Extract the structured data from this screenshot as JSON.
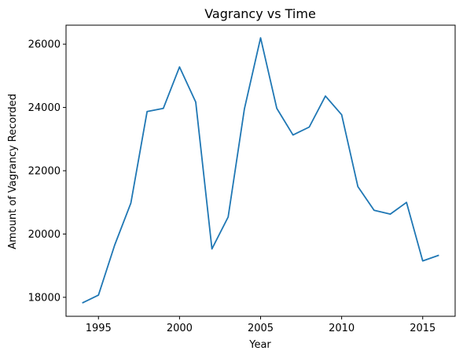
{
  "chart_data": {
    "type": "line",
    "title": "Vagrancy vs Time",
    "xlabel": "Year",
    "ylabel": "Amount of Vagrancy Recorded",
    "xlim": [
      1993.0,
      2017.0
    ],
    "ylim": [
      17400,
      26600
    ],
    "x_ticks": [
      1995,
      2000,
      2005,
      2010,
      2015
    ],
    "y_ticks": [
      18000,
      20000,
      22000,
      24000,
      26000
    ],
    "grid": false,
    "line_color": "#1f77b4",
    "series": [
      {
        "name": "Vagrancy",
        "x": [
          1994,
          1995,
          1996,
          1997,
          1998,
          1999,
          2000,
          2001,
          2002,
          2003,
          2004,
          2005,
          2006,
          2007,
          2008,
          2009,
          2010,
          2011,
          2012,
          2013,
          2014,
          2015,
          2016
        ],
        "values": [
          17820,
          18070,
          19650,
          20980,
          23870,
          23970,
          25280,
          24170,
          19530,
          20540,
          23950,
          26200,
          23970,
          23130,
          23380,
          24360,
          23770,
          21500,
          20750,
          20630,
          21000,
          19150,
          19330
        ]
      }
    ]
  }
}
